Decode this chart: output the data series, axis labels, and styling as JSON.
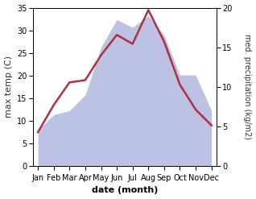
{
  "months": [
    "Jan",
    "Feb",
    "Mar",
    "Apr",
    "May",
    "Jun",
    "Jul",
    "Aug",
    "Sep",
    "Oct",
    "Nov",
    "Dec"
  ],
  "temperature": [
    7.5,
    13.5,
    18.5,
    19.0,
    24.5,
    29.0,
    27.0,
    34.5,
    27.5,
    18.0,
    12.5,
    9.0
  ],
  "precipitation_kg": [
    4.5,
    6.5,
    7.0,
    9.0,
    15.0,
    18.5,
    17.5,
    19.0,
    16.5,
    11.5,
    11.5,
    7.0
  ],
  "temp_color": "#b03040",
  "precip_color": "#b0b8e0",
  "left_ylim": [
    0,
    35
  ],
  "right_ylim": [
    0,
    20
  ],
  "left_yticks": [
    0,
    5,
    10,
    15,
    20,
    25,
    30,
    35
  ],
  "right_yticks": [
    0,
    5,
    10,
    15,
    20
  ],
  "xlabel": "date (month)",
  "ylabel_left": "max temp (C)",
  "ylabel_right": "med. precipitation (kg/m2)",
  "tick_label_fontsize": 7,
  "axis_label_fontsize": 8
}
